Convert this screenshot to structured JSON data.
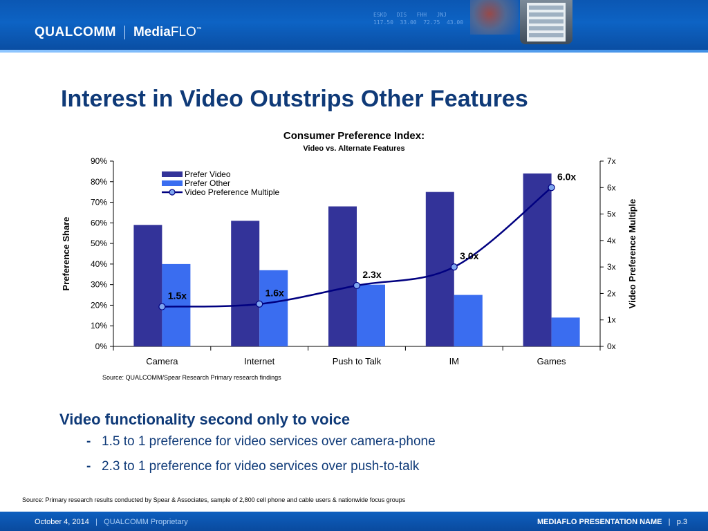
{
  "header": {
    "company": "QUALCOMM",
    "product": "MediaFLO",
    "product_bold": "Media",
    "product_rest": "FLO",
    "trademark": "™"
  },
  "slide": {
    "title": "Interest in Video Outstrips Other Features"
  },
  "chart_data": {
    "type": "bar",
    "title": "Consumer Preference Index:",
    "subtitle": "Video vs. Alternate Features",
    "categories": [
      "Camera",
      "Internet",
      "Push to Talk",
      "IM",
      "Games"
    ],
    "series": [
      {
        "name": "Prefer Video",
        "type": "bar",
        "axis": "left",
        "color": "#333399",
        "values": [
          59,
          61,
          68,
          75,
          84
        ]
      },
      {
        "name": "Prefer Other",
        "type": "bar",
        "axis": "left",
        "color": "#3a6df0",
        "values": [
          40,
          37,
          30,
          25,
          14
        ]
      },
      {
        "name": "Video Preference Multiple",
        "type": "line",
        "axis": "right",
        "color": "#000080",
        "marker_color": "#7ea6f0",
        "values": [
          1.5,
          1.6,
          2.3,
          3.0,
          6.0
        ],
        "labels": [
          "1.5x",
          "1.6x",
          "2.3x",
          "3.0x",
          "6.0x"
        ]
      }
    ],
    "y_left": {
      "label": "Preference Share",
      "min": 0,
      "max": 90,
      "ticks": [
        "0%",
        "10%",
        "20%",
        "30%",
        "40%",
        "50%",
        "60%",
        "70%",
        "80%",
        "90%"
      ]
    },
    "y_right": {
      "label": "Video Preference Multiple",
      "min": 0,
      "max": 7,
      "ticks": [
        "0x",
        "1x",
        "2x",
        "3x",
        "4x",
        "5x",
        "6x",
        "7x"
      ]
    },
    "legend": "top-left",
    "grid": false,
    "source": "Source: QUALCOMM/Spear Research Primary research findings"
  },
  "body": {
    "heading": "Video functionality second only to voice",
    "bullet_marker": "-",
    "bullets": [
      "1.5 to 1 preference for video services over camera-phone",
      "2.3 to 1 preference for video services over push-to-talk"
    ],
    "source": "Source: Primary research results conducted by Spear & Associates, sample of 2,800 cell phone and cable users & nationwide focus groups"
  },
  "footer": {
    "date": "October 4, 2014",
    "separator": "|",
    "proprietary": "QUALCOMM Proprietary",
    "presentation_name": "MEDIAFLO  PRESENTATION NAME",
    "page": "p.3"
  }
}
